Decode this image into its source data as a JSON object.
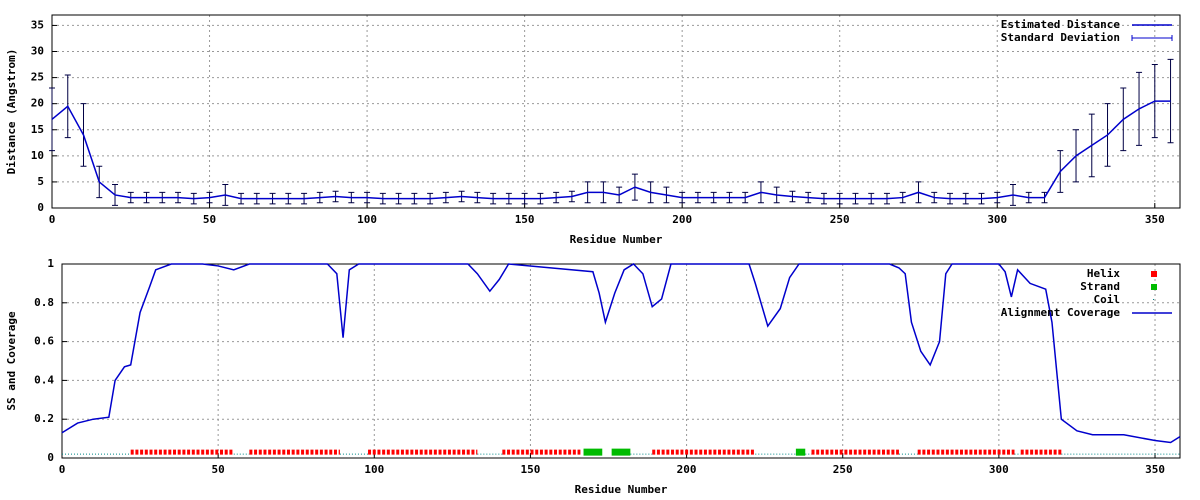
{
  "chart_data": [
    {
      "type": "errorbar_line",
      "x_label": "Residue Number",
      "y_label": "Distance (Angstrom)",
      "xlim": [
        0,
        358
      ],
      "ylim": [
        0,
        37
      ],
      "xticks": [
        0,
        50,
        100,
        150,
        200,
        250,
        300,
        350
      ],
      "yticks": [
        0,
        5,
        10,
        15,
        20,
        25,
        30,
        35
      ],
      "grid": true,
      "legend": "top-right",
      "x": [
        0,
        5,
        10,
        15,
        20,
        25,
        30,
        35,
        40,
        45,
        50,
        55,
        60,
        65,
        70,
        75,
        80,
        85,
        90,
        95,
        100,
        105,
        110,
        115,
        120,
        125,
        130,
        135,
        140,
        145,
        150,
        155,
        160,
        165,
        170,
        175,
        180,
        185,
        190,
        195,
        200,
        205,
        210,
        215,
        220,
        225,
        230,
        235,
        240,
        245,
        250,
        255,
        260,
        265,
        270,
        275,
        280,
        285,
        290,
        295,
        300,
        305,
        310,
        315,
        320,
        325,
        330,
        335,
        340,
        345,
        350,
        355
      ],
      "series": [
        {
          "name": "Estimated Distance",
          "color": "#0000cc",
          "values": [
            17,
            19.5,
            14,
            5,
            2.5,
            2,
            2,
            2,
            2,
            1.8,
            2,
            2.5,
            1.8,
            1.8,
            1.8,
            1.8,
            1.8,
            2,
            2.2,
            2,
            2,
            1.8,
            1.8,
            1.8,
            1.8,
            2,
            2.2,
            2,
            1.8,
            1.8,
            1.8,
            1.8,
            2,
            2.2,
            3,
            3,
            2.5,
            4,
            3,
            2.5,
            2,
            2,
            2,
            2,
            2,
            3,
            2.5,
            2.2,
            2,
            1.8,
            1.8,
            1.8,
            1.8,
            1.8,
            2,
            3,
            2,
            1.8,
            1.8,
            1.8,
            2,
            2.5,
            2,
            2,
            7,
            10,
            12,
            14,
            17,
            19,
            20.5,
            20.5
          ]
        },
        {
          "name": "Standard Deviation",
          "color": "#000044",
          "values": [
            6,
            6,
            6,
            3,
            2,
            1,
            1,
            1,
            1,
            1,
            1,
            2,
            1,
            1,
            1,
            1,
            1,
            1,
            1,
            1,
            1,
            1,
            1,
            1,
            1,
            1,
            1,
            1,
            1,
            1,
            1,
            1,
            1,
            1,
            2,
            2,
            1.5,
            2.5,
            2,
            1.5,
            1,
            1,
            1,
            1,
            1,
            2,
            1.5,
            1,
            1,
            1,
            1,
            1,
            1,
            1,
            1,
            2,
            1,
            1,
            1,
            1,
            1,
            2,
            1,
            1,
            4,
            5,
            6,
            6,
            6,
            7,
            7,
            8
          ]
        }
      ]
    },
    {
      "type": "ss_coverage",
      "x_label": "Residue Number",
      "y_label": "SS and Coverage",
      "xlim": [
        0,
        358
      ],
      "ylim": [
        0,
        1
      ],
      "xticks": [
        0,
        50,
        100,
        150,
        200,
        250,
        300,
        350
      ],
      "yticks": [
        0,
        0.2,
        0.4,
        0.6,
        0.8,
        1
      ],
      "grid": true,
      "legend": "top-right",
      "ss": [
        {
          "name": "Helix",
          "color": "#ff0000",
          "level": 0.03,
          "ranges": [
            [
              22,
              55
            ],
            [
              60,
              89
            ],
            [
              98,
              133
            ],
            [
              141,
              166
            ],
            [
              189,
              222
            ],
            [
              240,
              268
            ],
            [
              274,
              305
            ],
            [
              307,
              320
            ]
          ]
        },
        {
          "name": "Strand",
          "color": "#00bb00",
          "level": 0.03,
          "ranges": [
            [
              167,
              173
            ],
            [
              176,
              182
            ],
            [
              235,
              238
            ]
          ]
        },
        {
          "name": "Coil",
          "color": "#008888",
          "level": 0.02,
          "ranges": [
            [
              0,
              22
            ],
            [
              55,
              60
            ],
            [
              89,
              98
            ],
            [
              133,
              141
            ],
            [
              182,
              189
            ],
            [
              222,
              235
            ],
            [
              238,
              240
            ],
            [
              268,
              274
            ],
            [
              305,
              307
            ],
            [
              320,
              358
            ]
          ]
        }
      ],
      "x": [
        0,
        5,
        10,
        15,
        17,
        20,
        22,
        25,
        28,
        30,
        35,
        45,
        50,
        55,
        60,
        85,
        88,
        90,
        92,
        95,
        130,
        133,
        137,
        140,
        143,
        170,
        172,
        174,
        177,
        180,
        183,
        186,
        189,
        192,
        195,
        220,
        222,
        226,
        230,
        233,
        236,
        265,
        268,
        270,
        272,
        275,
        278,
        281,
        283,
        285,
        300,
        302,
        304,
        306,
        310,
        315,
        317,
        320,
        325,
        330,
        340,
        350,
        355,
        358
      ],
      "series": [
        {
          "name": "Alignment Coverage",
          "color": "#0000cc",
          "values": [
            0.13,
            0.18,
            0.2,
            0.21,
            0.4,
            0.47,
            0.48,
            0.75,
            0.88,
            0.97,
            1,
            1,
            0.99,
            0.97,
            1,
            1,
            0.95,
            0.62,
            0.97,
            1,
            1,
            0.95,
            0.86,
            0.92,
            1,
            0.96,
            0.85,
            0.7,
            0.85,
            0.97,
            1,
            0.95,
            0.78,
            0.82,
            1,
            1,
            0.9,
            0.68,
            0.77,
            0.93,
            1,
            1,
            0.98,
            0.95,
            0.7,
            0.55,
            0.48,
            0.6,
            0.95,
            1,
            1,
            0.96,
            0.83,
            0.97,
            0.9,
            0.87,
            0.7,
            0.2,
            0.14,
            0.12,
            0.12,
            0.09,
            0.08,
            0.11
          ]
        }
      ]
    }
  ]
}
